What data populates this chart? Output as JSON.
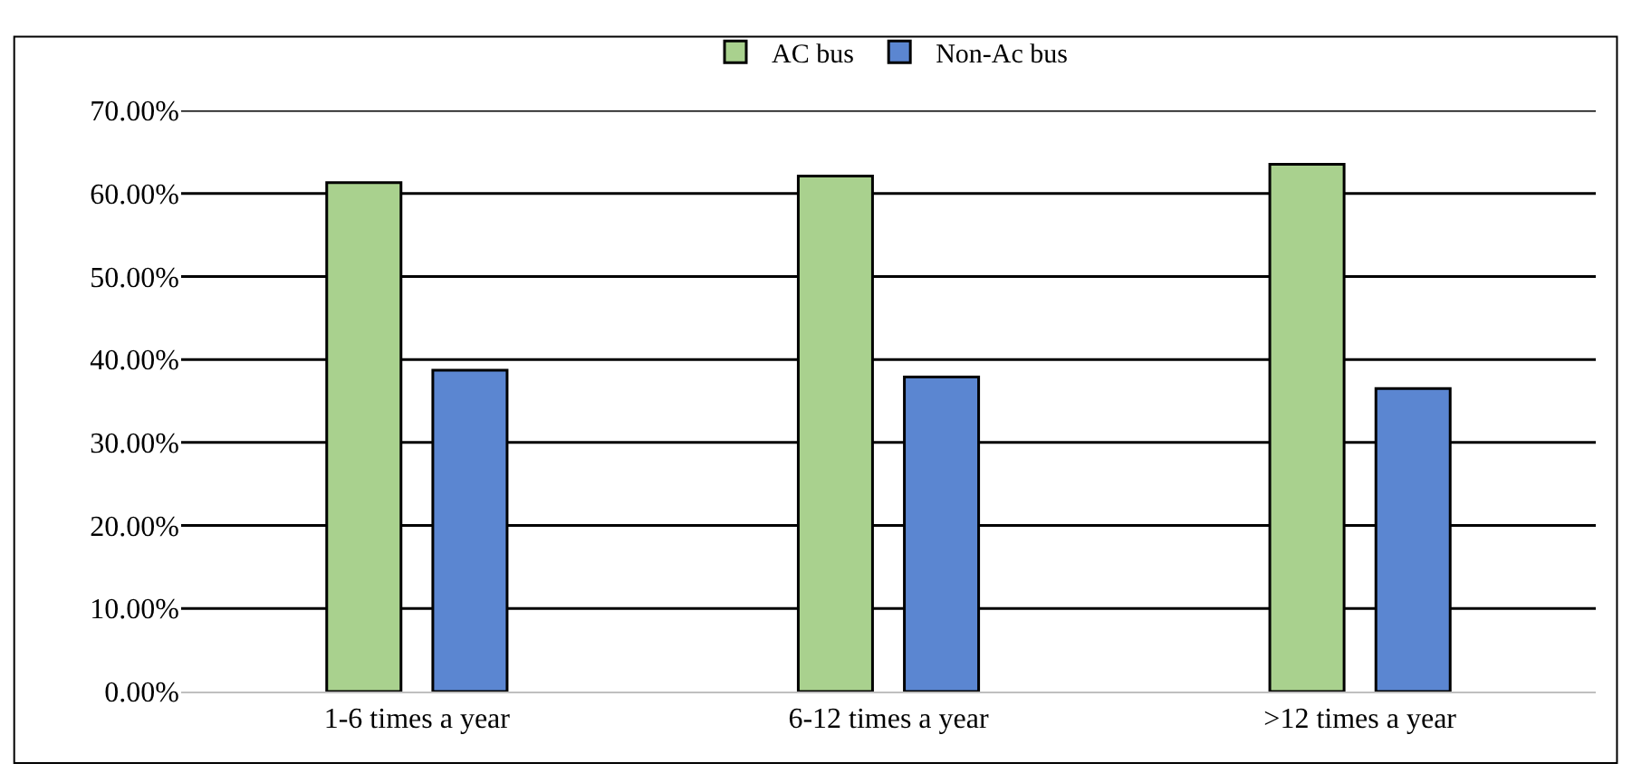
{
  "chart_data": {
    "type": "bar",
    "categories": [
      "1-6 times a year",
      "6-12 times a year",
      ">12 times a year"
    ],
    "series": [
      {
        "name": "AC bus",
        "color": "#a9d18e",
        "values": [
          61.3,
          62.1,
          63.5
        ]
      },
      {
        "name": "Non-Ac bus",
        "color": "#5b86d1",
        "values": [
          38.7,
          37.9,
          36.5
        ]
      }
    ],
    "ylim": [
      0,
      70
    ],
    "yticks": [
      {
        "value": 0,
        "label": "0.00%"
      },
      {
        "value": 10,
        "label": "10.00%"
      },
      {
        "value": 20,
        "label": "20.00%"
      },
      {
        "value": 30,
        "label": "30.00%"
      },
      {
        "value": 40,
        "label": "40.00%"
      },
      {
        "value": 50,
        "label": "50.00%"
      },
      {
        "value": 60,
        "label": "60.00%"
      },
      {
        "value": 70,
        "label": "70.00%"
      }
    ],
    "grid": "y",
    "legend": "top"
  }
}
